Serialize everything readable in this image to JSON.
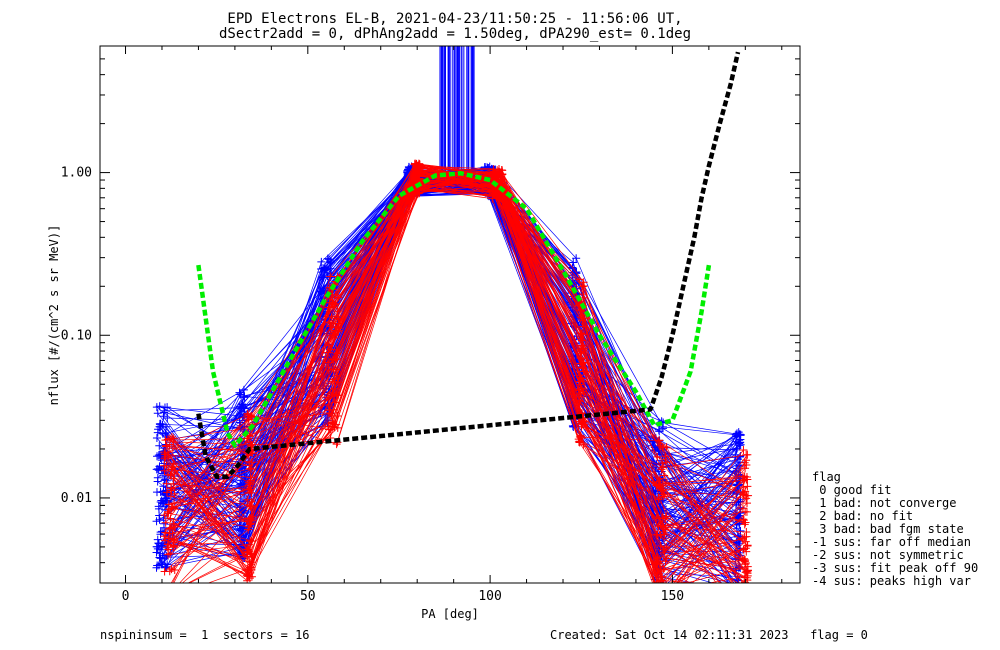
{
  "chart_data": {
    "type": "line",
    "title": "EPD Electrons EL-B, 2021-04-23/11:50:25 - 11:56:06 UT,",
    "subtitle": "dSectr2add = 0, dPhAng2add = 1.50deg, dPA290_est=   0.1deg",
    "xlabel": "PA [deg]",
    "ylabel": "nflux [#/(cm^2 s sr MeV)]",
    "xlim": [
      -7,
      185
    ],
    "ylim": [
      0.003,
      6.0
    ],
    "yscale": "log",
    "x_ticks": [
      "0",
      "50",
      "100",
      "150"
    ],
    "x_tick_values": [
      0,
      50,
      100,
      150
    ],
    "y_ticks": [
      "0.01",
      "0.10",
      "1.00"
    ],
    "y_tick_values": [
      0.01,
      0.1,
      1.0
    ],
    "grid": false,
    "legend": {
      "placement": "right-bottom",
      "lines": [
        "flag",
        " 0 good fit",
        " 1 bad: not converge",
        " 2 bad: no fit",
        " 3 bad: bad fgm state",
        "-1 sus: far off median",
        "-2 sus: not symmetric",
        "-3 sus: fit peak off 90",
        "-4 sus: peaks high var"
      ]
    },
    "series": [
      {
        "color": "#0000ff",
        "style": "thin-lines-plus-markers",
        "x": [
          10,
          32,
          55,
          78,
          100,
          123,
          146,
          168
        ],
        "y": [
          0.012,
          0.014,
          0.09,
          0.88,
          0.88,
          0.09,
          0.009,
          0.008
        ]
      },
      {
        "color": "#ff0000",
        "style": "thin-lines-plus-markers",
        "x": [
          12,
          34,
          57,
          80,
          102,
          125,
          147,
          170
        ],
        "y": [
          0.008,
          0.01,
          0.07,
          0.92,
          0.85,
          0.07,
          0.007,
          0.006
        ]
      },
      {
        "color": "#00ee00",
        "style": "dashed-fit",
        "x": [
          20,
          24,
          28,
          30,
          35,
          45,
          55,
          65,
          75,
          85,
          92,
          100,
          110,
          120,
          130,
          140,
          145,
          150,
          155,
          158,
          160
        ],
        "y": [
          0.27,
          0.06,
          0.025,
          0.021,
          0.028,
          0.07,
          0.17,
          0.38,
          0.72,
          0.96,
          0.99,
          0.9,
          0.6,
          0.25,
          0.1,
          0.045,
          0.028,
          0.03,
          0.06,
          0.14,
          0.27
        ]
      },
      {
        "color": "#000000",
        "style": "dashed-fit",
        "x": [
          20,
          22,
          25,
          28,
          31,
          34,
          144,
          147,
          150,
          153,
          156,
          158,
          160,
          163,
          166,
          168
        ],
        "y": [
          0.033,
          0.018,
          0.0135,
          0.0135,
          0.016,
          0.02,
          0.035,
          0.055,
          0.1,
          0.2,
          0.4,
          0.7,
          1.1,
          2.0,
          3.5,
          5.5
        ]
      }
    ]
  },
  "footer": {
    "left": "nspininsum =  1  sectors = 16",
    "right": "Created: Sat Oct 14 02:11:31 2023   flag = 0"
  }
}
